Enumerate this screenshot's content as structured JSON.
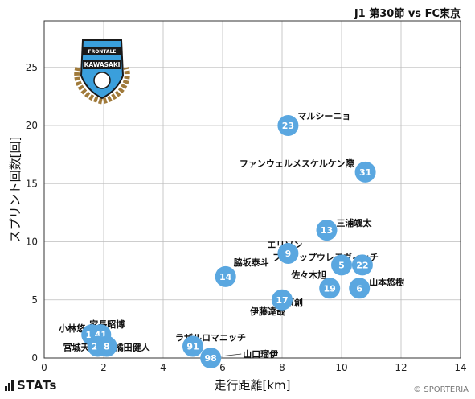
{
  "header": {
    "title": "J1 第30節 vs FC東京"
  },
  "footer": {
    "brand": "STATs",
    "credit": "© SPORTERIA"
  },
  "crest": {
    "name": "KAWASAKI",
    "motto": "FRONTALE",
    "colors": {
      "primary": "#3a9fdc",
      "secondary": "#1a1a1a",
      "laurel": "#a07a3a"
    }
  },
  "colors": {
    "point": "#5aa7e0",
    "point_text": "#ffffff",
    "grid": "#bdbdbd",
    "axis": "#333333"
  },
  "chart_data": {
    "type": "scatter",
    "title": "",
    "xlabel": "走行距離[km]",
    "ylabel": "スプリント回数[回]",
    "xlim": [
      0,
      14
    ],
    "ylim": [
      0,
      29
    ],
    "xticks": [
      0,
      2,
      4,
      6,
      8,
      10,
      12,
      14
    ],
    "yticks": [
      0,
      5,
      10,
      15,
      20,
      25
    ],
    "grid": true,
    "points": [
      {
        "number": "23",
        "name": "マルシーニョ",
        "x": 8.2,
        "y": 20
      },
      {
        "number": "31",
        "name": "ファンウェルメスケルケン際",
        "x": 10.8,
        "y": 16
      },
      {
        "number": "13",
        "name": "三浦颯太",
        "x": 9.5,
        "y": 11
      },
      {
        "number": "9",
        "name": "エリソン",
        "x": 8.2,
        "y": 9
      },
      {
        "number": "5",
        "name": "",
        "x": 10.0,
        "y": 8
      },
      {
        "number": "22",
        "name": "フィリップウレモヴィッチ",
        "x": 10.7,
        "y": 8
      },
      {
        "number": "14",
        "name": "脇坂泰斗",
        "x": 6.1,
        "y": 7
      },
      {
        "number": "19",
        "name": "佐々木旭",
        "x": 9.6,
        "y": 6
      },
      {
        "number": "6",
        "name": "山本悠樹",
        "x": 10.6,
        "y": 6
      },
      {
        "number": "17",
        "name": "河原創",
        "x": 8.0,
        "y": 5
      },
      {
        "number": "11",
        "name": "小林悠",
        "x": 1.6,
        "y": 2
      },
      {
        "number": "41",
        "name": "家長昭博",
        "x": 1.9,
        "y": 2
      },
      {
        "number": "24",
        "name": "宮城天",
        "x": 1.8,
        "y": 1
      },
      {
        "number": "8",
        "name": "橘田健人",
        "x": 2.1,
        "y": 1
      },
      {
        "number": "91",
        "name": "ラザルロマニッチ",
        "x": 5.0,
        "y": 1
      },
      {
        "number": "98",
        "name": "山口瑠伊",
        "x": 5.6,
        "y": 0
      }
    ],
    "extra_labels": [
      {
        "text": "伊藤達哉",
        "x": 8.0,
        "y": 5
      }
    ]
  }
}
